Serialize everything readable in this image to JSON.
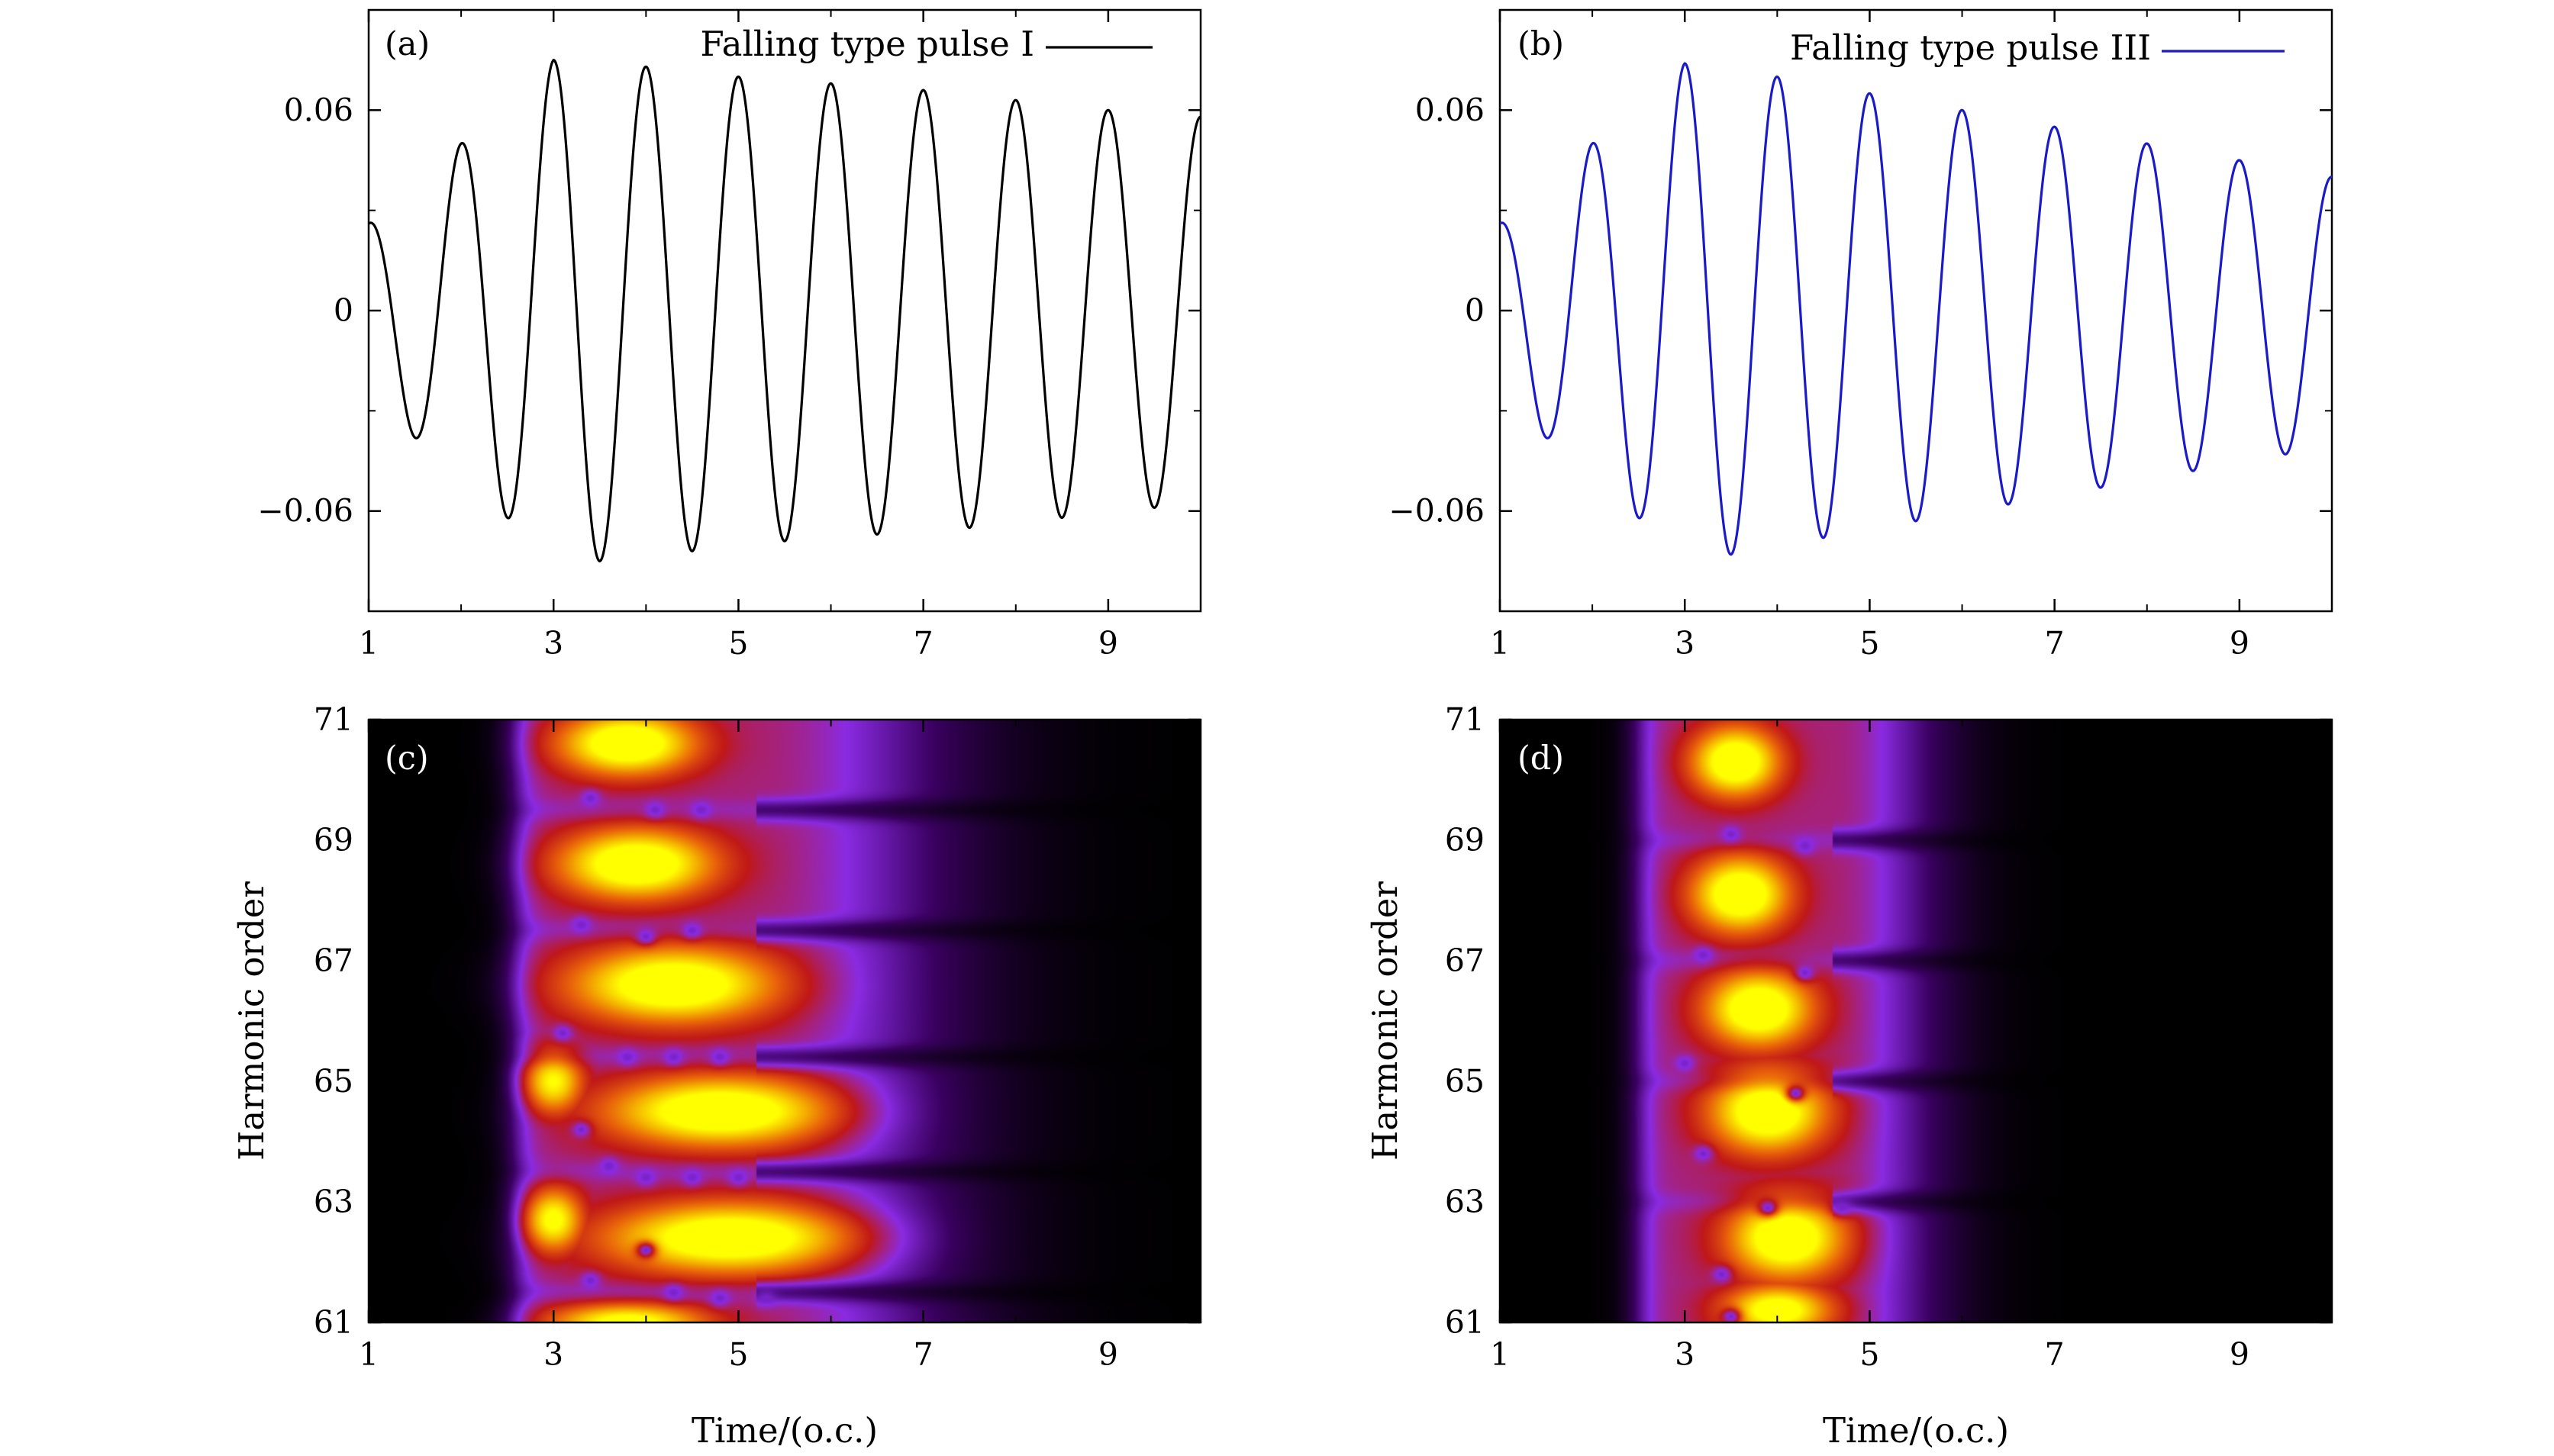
{
  "chart_data": [
    {
      "panel": "(a)",
      "type": "line",
      "xlabel": "",
      "ylabel": "",
      "xlim": [
        1,
        10
      ],
      "ylim": [
        -0.09,
        0.09
      ],
      "xticks": [
        1,
        3,
        5,
        7,
        9
      ],
      "yticks": [
        -0.06,
        0,
        0.06
      ],
      "ytick_labels": [
        "−0.06",
        "0",
        "0.06"
      ],
      "legend_position": "top-right",
      "series": [
        {
          "name": "Falling type pulse I",
          "color": "#000000",
          "period": 1.0,
          "phase_x0": 1.0,
          "envelope": {
            "x": [
              1.0,
              1.5,
              2.0,
              2.5,
              3.0,
              3.5,
              4.0,
              4.5,
              5.0,
              5.5,
              6.0,
              6.5,
              7.0,
              7.5,
              8.0,
              8.5,
              9.0,
              9.5,
              10.0
            ],
            "amp": [
              0.026,
              0.038,
              0.05,
              0.062,
              0.075,
              0.075,
              0.073,
              0.072,
              0.07,
              0.069,
              0.068,
              0.067,
              0.066,
              0.065,
              0.063,
              0.062,
              0.06,
              0.059,
              0.058
            ]
          }
        }
      ]
    },
    {
      "panel": "(b)",
      "type": "line",
      "xlabel": "",
      "ylabel": "",
      "xlim": [
        1,
        10
      ],
      "ylim": [
        -0.09,
        0.09
      ],
      "xticks": [
        1,
        3,
        5,
        7,
        9
      ],
      "yticks": [
        -0.06,
        0,
        0.06
      ],
      "ytick_labels": [
        "−0.06",
        "0",
        "0.06"
      ],
      "legend_position": "top-right",
      "series": [
        {
          "name": "Falling type pulse III",
          "color": "#1a1ac8",
          "period": 1.0,
          "phase_x0": 1.0,
          "envelope": {
            "x": [
              1.0,
              1.5,
              2.0,
              2.5,
              3.0,
              3.5,
              4.0,
              4.5,
              5.0,
              5.5,
              6.0,
              6.5,
              7.0,
              7.5,
              8.0,
              8.5,
              9.0,
              9.5,
              10.0
            ],
            "amp": [
              0.026,
              0.038,
              0.05,
              0.062,
              0.074,
              0.073,
              0.07,
              0.068,
              0.065,
              0.063,
              0.06,
              0.058,
              0.055,
              0.053,
              0.05,
              0.048,
              0.045,
              0.043,
              0.04
            ]
          }
        }
      ]
    },
    {
      "panel": "(c)",
      "type": "heatmap",
      "xlabel": "Time/(o.c.)",
      "ylabel": "Harmonic order",
      "xlim": [
        1,
        10
      ],
      "ylim": [
        61,
        71
      ],
      "xticks": [
        1,
        3,
        5,
        7,
        9
      ],
      "yticks": [
        61,
        63,
        65,
        67,
        69,
        71
      ],
      "colormap": [
        "#000000",
        "#3a0060",
        "#8a2be2",
        "#c01818",
        "#e8600a",
        "#f5b400",
        "#ffff00"
      ],
      "background": {
        "onset": 2.6,
        "spread": 0.3,
        "decay_start": 5.2,
        "decay_width": 2.0,
        "level": 0.42
      },
      "blobs": [
        {
          "t": 3.8,
          "h": 70.6,
          "st": 0.7,
          "sh": 0.5,
          "a": 1.0
        },
        {
          "t": 3.9,
          "h": 68.6,
          "st": 0.8,
          "sh": 0.55,
          "a": 1.0
        },
        {
          "t": 4.3,
          "h": 66.6,
          "st": 1.05,
          "sh": 0.6,
          "a": 1.0
        },
        {
          "t": 4.8,
          "h": 64.5,
          "st": 1.15,
          "sh": 0.55,
          "a": 1.0
        },
        {
          "t": 4.9,
          "h": 62.4,
          "st": 1.25,
          "sh": 0.55,
          "a": 1.0
        },
        {
          "t": 3.8,
          "h": 61.0,
          "st": 0.8,
          "sh": 0.3,
          "a": 0.85
        },
        {
          "t": 3.0,
          "h": 62.7,
          "st": 0.3,
          "sh": 0.5,
          "a": 0.8
        },
        {
          "t": 3.0,
          "h": 65.0,
          "st": 0.3,
          "sh": 0.5,
          "a": 0.75
        }
      ],
      "holes": [
        {
          "t": 3.4,
          "h": 69.7
        },
        {
          "t": 4.1,
          "h": 69.5
        },
        {
          "t": 4.6,
          "h": 69.5
        },
        {
          "t": 3.3,
          "h": 67.6
        },
        {
          "t": 4.0,
          "h": 67.4
        },
        {
          "t": 4.5,
          "h": 67.5
        },
        {
          "t": 3.1,
          "h": 65.8
        },
        {
          "t": 3.8,
          "h": 65.4
        },
        {
          "t": 4.3,
          "h": 65.4
        },
        {
          "t": 4.8,
          "h": 65.4
        },
        {
          "t": 3.3,
          "h": 64.2
        },
        {
          "t": 3.6,
          "h": 63.6
        },
        {
          "t": 4.0,
          "h": 63.4
        },
        {
          "t": 4.5,
          "h": 63.4
        },
        {
          "t": 5.0,
          "h": 63.4
        },
        {
          "t": 3.4,
          "h": 61.7
        },
        {
          "t": 4.0,
          "h": 62.2
        },
        {
          "t": 4.3,
          "h": 61.5
        },
        {
          "t": 4.8,
          "h": 61.4
        },
        {
          "t": 5.3,
          "h": 61.4
        }
      ],
      "dark_rows": [
        69.5,
        67.5,
        65.4,
        63.5,
        61.5
      ]
    },
    {
      "panel": "(d)",
      "type": "heatmap",
      "xlabel": "Time/(o.c.)",
      "ylabel": "Harmonic order",
      "xlim": [
        1,
        10
      ],
      "ylim": [
        61,
        71
      ],
      "xticks": [
        1,
        3,
        5,
        7,
        9
      ],
      "yticks": [
        61,
        63,
        65,
        67,
        69,
        71
      ],
      "colormap": [
        "#000000",
        "#3a0060",
        "#8a2be2",
        "#c01818",
        "#e8600a",
        "#f5b400",
        "#ffff00"
      ],
      "background": {
        "onset": 2.5,
        "spread": 0.3,
        "decay_start": 4.6,
        "decay_width": 1.1,
        "level": 0.42
      },
      "blobs": [
        {
          "t": 3.55,
          "h": 70.3,
          "st": 0.45,
          "sh": 0.55,
          "a": 1.0
        },
        {
          "t": 3.6,
          "h": 68.1,
          "st": 0.5,
          "sh": 0.6,
          "a": 1.0
        },
        {
          "t": 3.8,
          "h": 66.2,
          "st": 0.55,
          "sh": 0.6,
          "a": 1.0
        },
        {
          "t": 3.9,
          "h": 64.5,
          "st": 0.6,
          "sh": 0.65,
          "a": 1.0
        },
        {
          "t": 4.1,
          "h": 62.4,
          "st": 0.6,
          "sh": 0.65,
          "a": 1.0
        },
        {
          "t": 4.0,
          "h": 61.2,
          "st": 0.55,
          "sh": 0.4,
          "a": 0.9
        }
      ],
      "holes": [
        {
          "t": 3.5,
          "h": 69.1
        },
        {
          "t": 4.3,
          "h": 68.9
        },
        {
          "t": 3.2,
          "h": 67.1
        },
        {
          "t": 4.3,
          "h": 66.8
        },
        {
          "t": 3.0,
          "h": 65.3
        },
        {
          "t": 4.2,
          "h": 64.8
        },
        {
          "t": 3.2,
          "h": 63.8
        },
        {
          "t": 3.9,
          "h": 62.9
        },
        {
          "t": 4.7,
          "h": 62.9
        },
        {
          "t": 3.4,
          "h": 61.8
        },
        {
          "t": 3.5,
          "h": 61.1
        }
      ],
      "dark_rows": [
        69.0,
        67.0,
        65.0,
        63.0
      ]
    }
  ]
}
